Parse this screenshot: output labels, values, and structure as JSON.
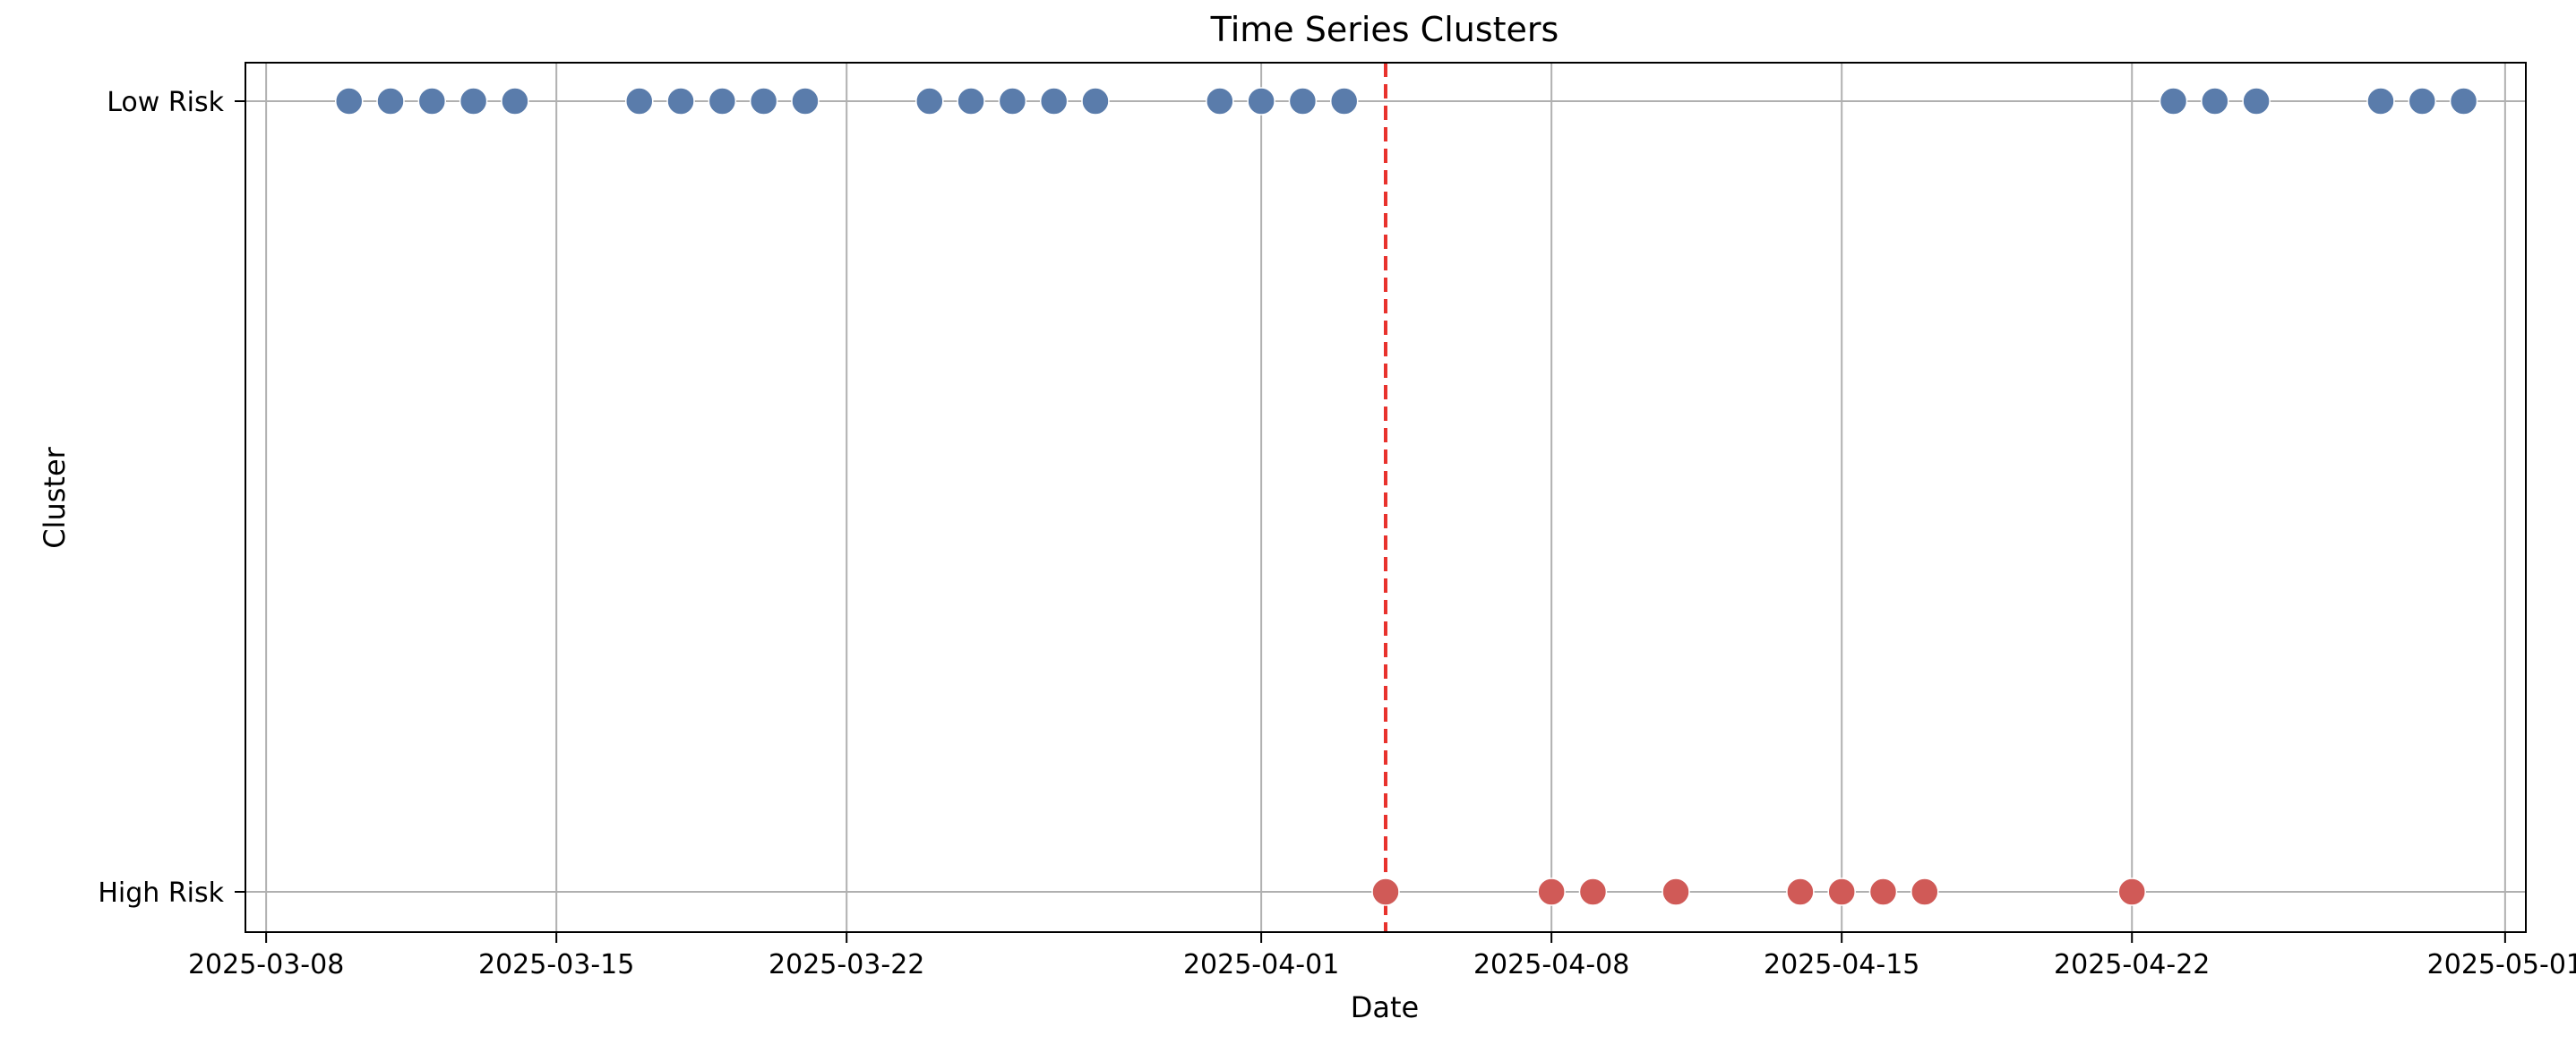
{
  "chart_data": {
    "type": "scatter",
    "title": "Time Series Clusters",
    "xlabel": "Date",
    "ylabel": "Cluster",
    "grid": true,
    "xlim": [
      "2025-03-07T12:00",
      "2025-05-01T12:00"
    ],
    "x_ticks": [
      "2025-03-08",
      "2025-03-15",
      "2025-03-22",
      "2025-04-01",
      "2025-04-08",
      "2025-04-15",
      "2025-04-22",
      "2025-05-01"
    ],
    "y_categories": [
      "High Risk",
      "Low Risk"
    ],
    "series": [
      {
        "name": "Low Risk",
        "color": "#5a7cab",
        "x": [
          "2025-03-10",
          "2025-03-11",
          "2025-03-12",
          "2025-03-13",
          "2025-03-14",
          "2025-03-17",
          "2025-03-18",
          "2025-03-19",
          "2025-03-20",
          "2025-03-21",
          "2025-03-24",
          "2025-03-25",
          "2025-03-26",
          "2025-03-27",
          "2025-03-28",
          "2025-03-31",
          "2025-04-01",
          "2025-04-02",
          "2025-04-03",
          "2025-04-23",
          "2025-04-24",
          "2025-04-25",
          "2025-04-28",
          "2025-04-29",
          "2025-04-30"
        ],
        "y": "Low Risk"
      },
      {
        "name": "High Risk",
        "color": "#d05a57",
        "x": [
          "2025-04-04",
          "2025-04-08",
          "2025-04-09",
          "2025-04-11",
          "2025-04-14",
          "2025-04-15",
          "2025-04-16",
          "2025-04-17",
          "2025-04-22"
        ],
        "y": "High Risk"
      }
    ],
    "threshold_line": {
      "x": "2025-04-04",
      "color": "#e8322d",
      "style": "dashed"
    }
  }
}
